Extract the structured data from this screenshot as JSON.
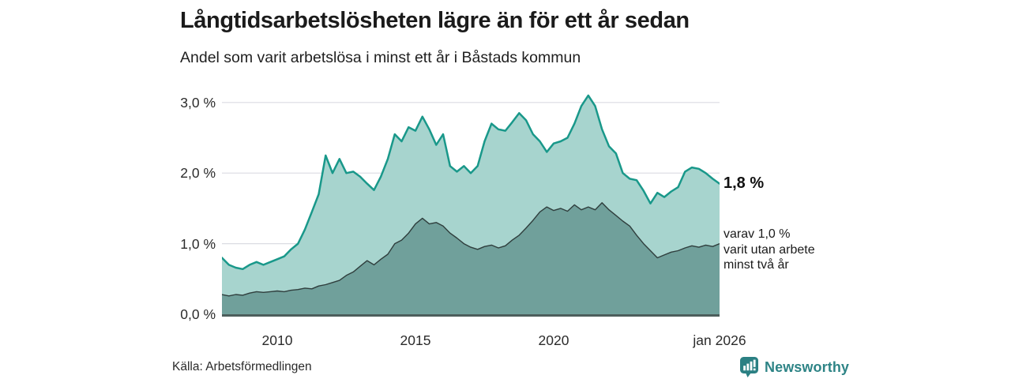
{
  "title": "Långtidsarbetslösheten lägre än för ett år sedan",
  "subtitle": "Andel som varit arbetslösa i minst ett år i Båstads kommun",
  "source": "Källa: Arbetsförmedlingen",
  "logo": {
    "text": "Newsworthy",
    "icon": "newsworthy-bubble-barchart-icon"
  },
  "annotations": {
    "latest_total": "1,8 %",
    "secondary": [
      "varav 1,0 %",
      "varit utan arbete",
      "minst två år"
    ]
  },
  "colors": {
    "total_line": "#19988a",
    "total_fill": "#a7d4ce",
    "two_year_line": "#2f3e3d",
    "two_year_fill": "#70a09b",
    "gridline": "#dbdce2",
    "axis_line": "#4d5e5c",
    "text": "#1b1b1b",
    "brand_teal": "#2e8486"
  },
  "chart_data": {
    "type": "area",
    "title": "Andel som varit arbetslösa i minst ett år i Båstads kommun",
    "unit": "%",
    "grid": true,
    "legend_position": "none",
    "xlim": [
      2008,
      2026
    ],
    "ylim": [
      0,
      3.3
    ],
    "x_ticks": [
      {
        "value": 2010,
        "label": "2010"
      },
      {
        "value": 2015,
        "label": "2015"
      },
      {
        "value": 2020,
        "label": "2020"
      },
      {
        "value": 2026,
        "label": "jan 2026"
      }
    ],
    "y_ticks": [
      {
        "value": 0,
        "label": "0,0 %"
      },
      {
        "value": 1,
        "label": "1,0 %"
      },
      {
        "value": 2,
        "label": "2,0 %"
      },
      {
        "value": 3,
        "label": "3,0 %"
      }
    ],
    "series": [
      {
        "name": "Arbetslösa minst ett år",
        "end_label": "1,8 %",
        "line_color": "#19988a",
        "fill_color": "#a7d4ce",
        "line_width": 2.5,
        "points": [
          [
            2008.0,
            0.8
          ],
          [
            2008.25,
            0.7
          ],
          [
            2008.5,
            0.66
          ],
          [
            2008.75,
            0.64
          ],
          [
            2009.0,
            0.7
          ],
          [
            2009.25,
            0.74
          ],
          [
            2009.5,
            0.7
          ],
          [
            2009.75,
            0.74
          ],
          [
            2010.0,
            0.78
          ],
          [
            2010.25,
            0.82
          ],
          [
            2010.5,
            0.92
          ],
          [
            2010.75,
            1.0
          ],
          [
            2011.0,
            1.2
          ],
          [
            2011.25,
            1.45
          ],
          [
            2011.5,
            1.7
          ],
          [
            2011.75,
            2.25
          ],
          [
            2012.0,
            2.0
          ],
          [
            2012.25,
            2.2
          ],
          [
            2012.5,
            2.0
          ],
          [
            2012.75,
            2.02
          ],
          [
            2013.0,
            1.95
          ],
          [
            2013.25,
            1.85
          ],
          [
            2013.5,
            1.76
          ],
          [
            2013.75,
            1.95
          ],
          [
            2014.0,
            2.2
          ],
          [
            2014.25,
            2.55
          ],
          [
            2014.5,
            2.45
          ],
          [
            2014.75,
            2.65
          ],
          [
            2015.0,
            2.6
          ],
          [
            2015.25,
            2.8
          ],
          [
            2015.5,
            2.62
          ],
          [
            2015.75,
            2.4
          ],
          [
            2016.0,
            2.55
          ],
          [
            2016.25,
            2.1
          ],
          [
            2016.5,
            2.02
          ],
          [
            2016.75,
            2.1
          ],
          [
            2017.0,
            2.0
          ],
          [
            2017.25,
            2.1
          ],
          [
            2017.5,
            2.45
          ],
          [
            2017.75,
            2.7
          ],
          [
            2018.0,
            2.62
          ],
          [
            2018.25,
            2.6
          ],
          [
            2018.5,
            2.72
          ],
          [
            2018.75,
            2.85
          ],
          [
            2019.0,
            2.75
          ],
          [
            2019.25,
            2.55
          ],
          [
            2019.5,
            2.45
          ],
          [
            2019.75,
            2.3
          ],
          [
            2020.0,
            2.42
          ],
          [
            2020.25,
            2.45
          ],
          [
            2020.5,
            2.5
          ],
          [
            2020.75,
            2.7
          ],
          [
            2021.0,
            2.95
          ],
          [
            2021.25,
            3.1
          ],
          [
            2021.5,
            2.95
          ],
          [
            2021.75,
            2.62
          ],
          [
            2022.0,
            2.38
          ],
          [
            2022.25,
            2.28
          ],
          [
            2022.5,
            2.0
          ],
          [
            2022.75,
            1.92
          ],
          [
            2023.0,
            1.9
          ],
          [
            2023.25,
            1.75
          ],
          [
            2023.5,
            1.57
          ],
          [
            2023.75,
            1.72
          ],
          [
            2024.0,
            1.66
          ],
          [
            2024.25,
            1.74
          ],
          [
            2024.5,
            1.8
          ],
          [
            2024.75,
            2.02
          ],
          [
            2025.0,
            2.08
          ],
          [
            2025.25,
            2.06
          ],
          [
            2025.5,
            2.0
          ],
          [
            2025.75,
            1.92
          ],
          [
            2026.0,
            1.85
          ]
        ]
      },
      {
        "name": "varav arbetslösa minst två år",
        "end_label": "varav 1,0 % varit utan arbete minst två år",
        "line_color": "#2f3e3d",
        "fill_color": "#70a09b",
        "line_width": 1.4,
        "points": [
          [
            2008.0,
            0.28
          ],
          [
            2008.25,
            0.26
          ],
          [
            2008.5,
            0.28
          ],
          [
            2008.75,
            0.27
          ],
          [
            2009.0,
            0.3
          ],
          [
            2009.25,
            0.32
          ],
          [
            2009.5,
            0.31
          ],
          [
            2009.75,
            0.32
          ],
          [
            2010.0,
            0.33
          ],
          [
            2010.25,
            0.32
          ],
          [
            2010.5,
            0.34
          ],
          [
            2010.75,
            0.35
          ],
          [
            2011.0,
            0.37
          ],
          [
            2011.25,
            0.36
          ],
          [
            2011.5,
            0.4
          ],
          [
            2011.75,
            0.42
          ],
          [
            2012.0,
            0.45
          ],
          [
            2012.25,
            0.48
          ],
          [
            2012.5,
            0.55
          ],
          [
            2012.75,
            0.6
          ],
          [
            2013.0,
            0.68
          ],
          [
            2013.25,
            0.76
          ],
          [
            2013.5,
            0.7
          ],
          [
            2013.75,
            0.78
          ],
          [
            2014.0,
            0.85
          ],
          [
            2014.25,
            1.0
          ],
          [
            2014.5,
            1.05
          ],
          [
            2014.75,
            1.15
          ],
          [
            2015.0,
            1.28
          ],
          [
            2015.25,
            1.36
          ],
          [
            2015.5,
            1.28
          ],
          [
            2015.75,
            1.3
          ],
          [
            2016.0,
            1.25
          ],
          [
            2016.25,
            1.15
          ],
          [
            2016.5,
            1.08
          ],
          [
            2016.75,
            1.0
          ],
          [
            2017.0,
            0.95
          ],
          [
            2017.25,
            0.92
          ],
          [
            2017.5,
            0.96
          ],
          [
            2017.75,
            0.98
          ],
          [
            2018.0,
            0.94
          ],
          [
            2018.25,
            0.97
          ],
          [
            2018.5,
            1.05
          ],
          [
            2018.75,
            1.12
          ],
          [
            2019.0,
            1.22
          ],
          [
            2019.25,
            1.33
          ],
          [
            2019.5,
            1.45
          ],
          [
            2019.75,
            1.52
          ],
          [
            2020.0,
            1.47
          ],
          [
            2020.25,
            1.5
          ],
          [
            2020.5,
            1.46
          ],
          [
            2020.75,
            1.55
          ],
          [
            2021.0,
            1.48
          ],
          [
            2021.25,
            1.52
          ],
          [
            2021.5,
            1.48
          ],
          [
            2021.75,
            1.58
          ],
          [
            2022.0,
            1.48
          ],
          [
            2022.25,
            1.4
          ],
          [
            2022.5,
            1.32
          ],
          [
            2022.75,
            1.25
          ],
          [
            2023.0,
            1.12
          ],
          [
            2023.25,
            1.0
          ],
          [
            2023.5,
            0.9
          ],
          [
            2023.75,
            0.8
          ],
          [
            2024.0,
            0.84
          ],
          [
            2024.25,
            0.88
          ],
          [
            2024.5,
            0.9
          ],
          [
            2024.75,
            0.94
          ],
          [
            2025.0,
            0.97
          ],
          [
            2025.25,
            0.95
          ],
          [
            2025.5,
            0.98
          ],
          [
            2025.75,
            0.96
          ],
          [
            2026.0,
            1.0
          ]
        ]
      }
    ]
  }
}
